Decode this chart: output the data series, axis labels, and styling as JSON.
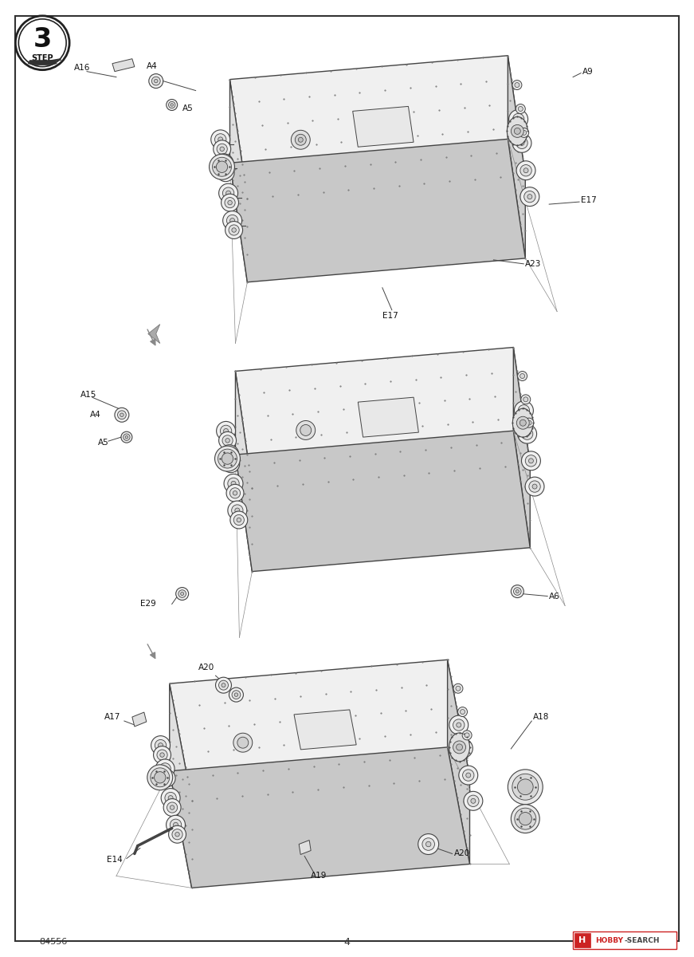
{
  "background_color": "#ffffff",
  "border_color": "#444444",
  "line_color": "#444444",
  "text_color": "#111111",
  "page_number": "4",
  "part_number": "84556",
  "step_number": "3",
  "light_fill": "#f0f0f0",
  "mid_fill": "#e0e0e0",
  "dark_fill": "#d0d0d0",
  "dot_color": "#777777",
  "ghost_line_color": "#888888",
  "lw_hull": 1.0,
  "lw_detail": 0.7,
  "lw_ghost": 0.5
}
